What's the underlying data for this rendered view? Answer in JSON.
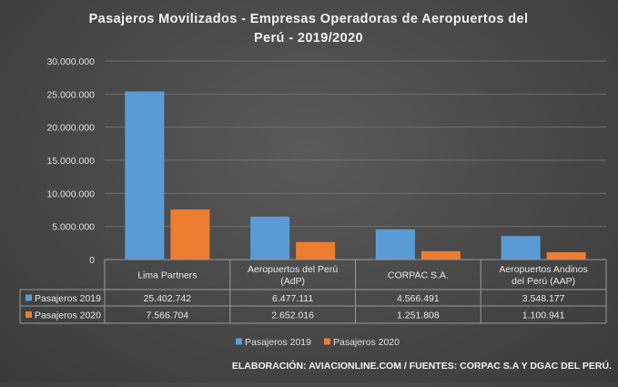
{
  "chart_data": {
    "type": "bar",
    "title_line1": "Pasajeros Movilizados - Empresas Operadoras de Aeropuertos del",
    "title_line2": "Perú - 2019/2020",
    "categories": [
      [
        "Lima Partners"
      ],
      [
        "Aeropuertos del Perú",
        "(AdP)"
      ],
      [
        "CORPAC S.A."
      ],
      [
        "Aeropuertos Andinos",
        "del Perú (AAP)"
      ]
    ],
    "series": [
      {
        "name": "Pasajeros 2019",
        "color": "#5b9bd5",
        "values": [
          25402742,
          6477111,
          4566491,
          3548177
        ],
        "labels": [
          "25.402.742",
          "6.477.111",
          "4.566.491",
          "3.548.177"
        ]
      },
      {
        "name": "Pasajeros 2020",
        "color": "#ed7d31",
        "values": [
          7566704,
          2652016,
          1251808,
          1100941
        ],
        "labels": [
          "7.566.704",
          "2.652.016",
          "1.251.808",
          "1.100.941"
        ]
      }
    ],
    "ylim": [
      0,
      30000000
    ],
    "yticks": [
      0,
      5000000,
      10000000,
      15000000,
      20000000,
      25000000,
      30000000
    ],
    "ytick_labels": [
      "0",
      "5.000.000",
      "10.000.000",
      "15.000.000",
      "20.000.000",
      "25.000.000",
      "30.000.000"
    ],
    "grid": true,
    "legend_position": "bottom",
    "data_table": true
  },
  "footer": {
    "credit": "ELABORACIÓN: AVIACIONLINE.COM  / FUENTES: CORPAC S.A Y DGAC DEL PERÚ."
  }
}
